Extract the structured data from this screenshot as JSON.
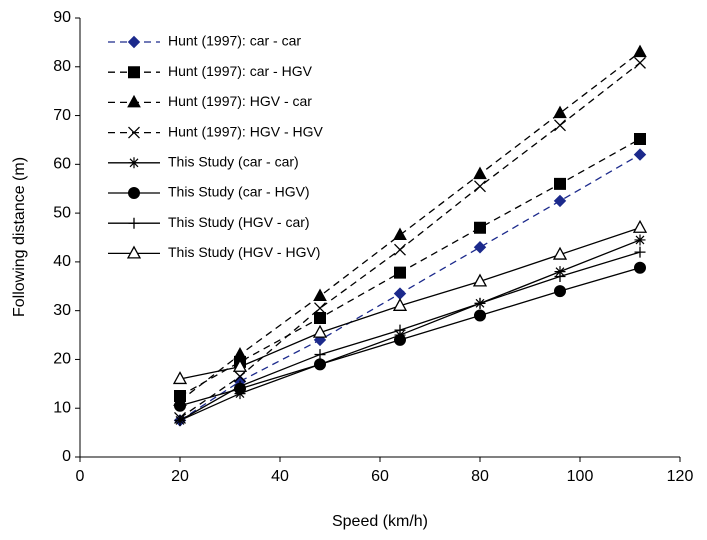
{
  "chart_data": {
    "type": "line",
    "x_label": "Speed (km/h)",
    "y_label": "Following distance (m)",
    "x": [
      20,
      32,
      48,
      64,
      80,
      96,
      112
    ],
    "xlim": [
      0,
      120
    ],
    "xticks": [
      0,
      20,
      40,
      60,
      80,
      100,
      120
    ],
    "ylim": [
      0,
      90
    ],
    "yticks": [
      0,
      10,
      20,
      30,
      40,
      50,
      60,
      70,
      80,
      90
    ],
    "legend": "upper-left",
    "series": [
      {
        "name": "Hunt (1997): car - car",
        "color": "#1c2a8c",
        "marker": "diamond",
        "dash": true,
        "values": [
          7.5,
          15.5,
          24,
          33.5,
          43,
          52.5,
          62
        ]
      },
      {
        "name": "Hunt (1997): car - HGV",
        "color": "#000000",
        "marker": "square",
        "dash": true,
        "values": [
          12.5,
          19.5,
          28.5,
          37.8,
          47,
          56,
          65.2
        ]
      },
      {
        "name": "Hunt (1997): HGV - car",
        "color": "#000000",
        "marker": "triangle",
        "dash": true,
        "values": [
          11.5,
          21,
          33,
          45.5,
          58,
          70.5,
          83
        ]
      },
      {
        "name": "Hunt (1997): HGV - HGV",
        "color": "#000000",
        "marker": "cross",
        "dash": true,
        "values": [
          8,
          16.5,
          30.5,
          42.5,
          55.5,
          68,
          80.8
        ]
      },
      {
        "name": "This Study (car - car)",
        "color": "#000000",
        "marker": "asterisk",
        "dash": false,
        "values": [
          7.5,
          13,
          19,
          25,
          31.5,
          38,
          44.5
        ]
      },
      {
        "name": "This Study (car - HGV)",
        "color": "#000000",
        "marker": "circle",
        "dash": false,
        "values": [
          10.5,
          14,
          19,
          24,
          29,
          34,
          38.8
        ]
      },
      {
        "name": "This Study (HGV - car)",
        "color": "#000000",
        "marker": "plus",
        "dash": false,
        "values": [
          7.5,
          14.5,
          21,
          26,
          31.5,
          37,
          42
        ]
      },
      {
        "name": "This Study (HGV - HGV)",
        "color": "#000000",
        "marker": "open-triangle",
        "dash": false,
        "values": [
          16,
          18.5,
          25.5,
          31,
          36,
          41.5,
          47
        ]
      }
    ]
  }
}
